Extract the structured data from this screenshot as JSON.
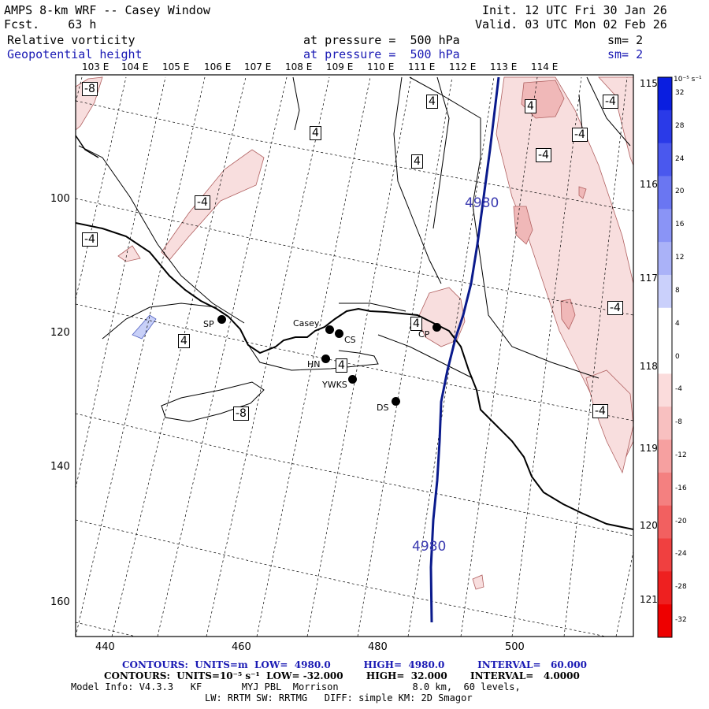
{
  "header": {
    "model_title": "AMPS 8-km WRF -- Casey Window",
    "forecast": "Fcst.    63 h",
    "init_time": "Init. 12 UTC Fri 30 Jan 26",
    "valid_time": "Valid. 03 UTC Mon 02 Feb 26",
    "field1_name": "Relative vorticity",
    "field1_level": "at pressure =  500 hPa",
    "field1_smooth": "sm= 2",
    "field2_name": "Geopotential height",
    "field2_level": "at pressure =  500 hPa",
    "field2_smooth": "sm= 2"
  },
  "map": {
    "lon_labels": [
      "103 E",
      "104 E",
      "105 E",
      "106 E",
      "107 E",
      "108 E",
      "109 E",
      "110 E",
      "111 E",
      "112 E",
      "113 E",
      "114 E"
    ],
    "lon_labels_right": [
      "115 E",
      "116 E",
      "117 E",
      "118 E",
      "119 E",
      "120 E",
      "121 E"
    ],
    "x_ticks": [
      "440",
      "460",
      "480",
      "500"
    ],
    "y_ticks": [
      "100",
      "120",
      "140",
      "160"
    ],
    "stations": [
      {
        "name": "SP"
      },
      {
        "name": "Casey"
      },
      {
        "name": "CS"
      },
      {
        "name": "HN"
      },
      {
        "name": "YWKS"
      },
      {
        "name": "DS"
      },
      {
        "name": "CP"
      }
    ],
    "vorticity_labels": [
      "-8",
      "-4",
      "-4",
      "4",
      "4",
      "4",
      "4",
      "4",
      "-8",
      "4",
      "-4",
      "-4",
      "-4",
      "-4",
      "4",
      "-4",
      "-4"
    ],
    "height_labels": [
      "4980",
      "4980"
    ],
    "colors": {
      "height_contour": "#0a1a8c",
      "coastline": "#000000",
      "vort_fill": "#f8dede",
      "vort_fill_strong": "#f0b8b8",
      "vort_fill_neg": "#c8d0f8"
    }
  },
  "colorbar": {
    "unit": "10⁻⁵ s⁻¹",
    "ticks": [
      "32",
      "28",
      "24",
      "20",
      "16",
      "12",
      "8",
      "4",
      "0",
      "-4",
      "-8",
      "-12",
      "-16",
      "-20",
      "-24",
      "-28",
      "-32"
    ],
    "colors": [
      "#0a1ee0",
      "#2a3ae8",
      "#4a58ee",
      "#6a76f2",
      "#8a94f6",
      "#aab2f8",
      "#cad0fb",
      "#ffffff",
      "#ffffff",
      "#fbdcdc",
      "#f8c0c0",
      "#f6a0a0",
      "#f48080",
      "#f26060",
      "#f04040",
      "#ee2020",
      "#ee0000"
    ]
  },
  "footer": {
    "line1": "CONTOURS:  UNITS=m  LOW=  4980.0          HIGH=  4980.0          INTERVAL=   60.000",
    "line2": "CONTOURS:  UNITS=10⁻⁵ s⁻¹  LOW= -32.000       HIGH=  32.000       INTERVAL=   4.0000",
    "line3": "Model Info: V4.3.3   KF       MYJ PBL  Morrison             8.0 km,  60 levels,",
    "line4": "LW: RRTM SW: RRTMG   DIFF: simple KM: 2D Smagor"
  }
}
